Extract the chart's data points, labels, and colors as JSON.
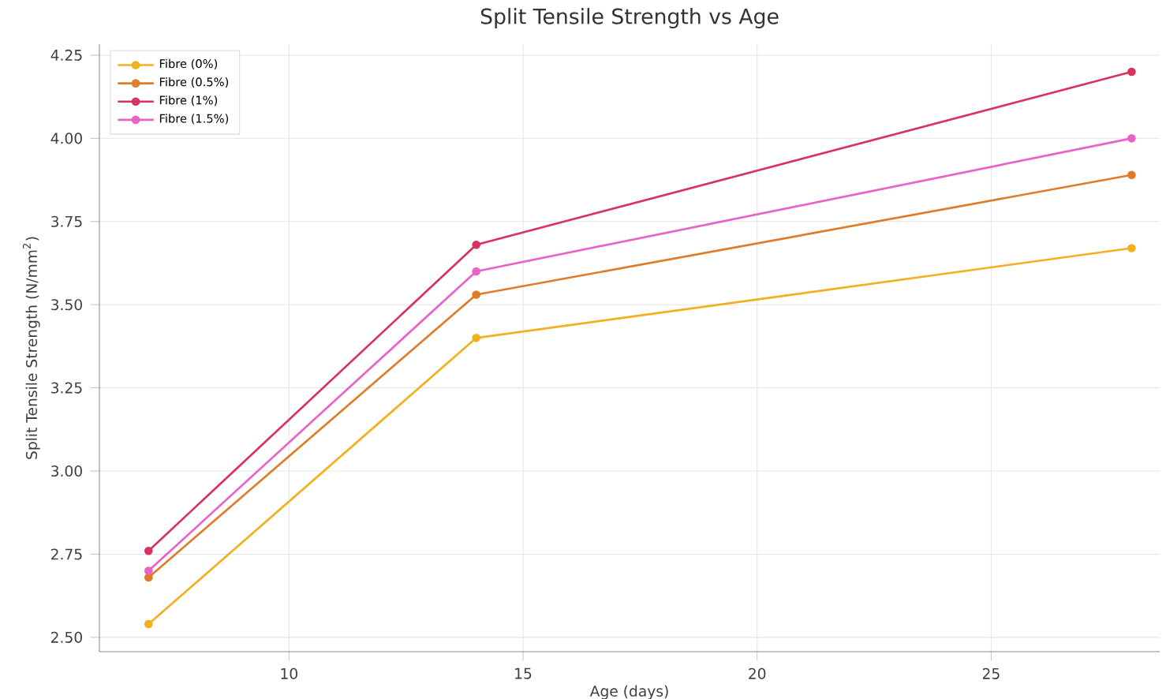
{
  "chart_data": {
    "type": "line",
    "title": "Split Tensile Strength vs Age",
    "xlabel": "Age (days)",
    "ylabel": "Split Tensile Strength (N/mm$^{2}$)",
    "x": [
      7,
      14,
      28
    ],
    "series": [
      {
        "name": "Fibre (0%)",
        "color": "#f2b01e",
        "values": [
          2.54,
          3.4,
          3.67
        ]
      },
      {
        "name": "Fibre (0.5%)",
        "color": "#e07b28",
        "values": [
          2.68,
          3.53,
          3.89
        ]
      },
      {
        "name": "Fibre (1%)",
        "color": "#d9325e",
        "values": [
          2.76,
          3.68,
          4.2
        ]
      },
      {
        "name": "Fibre (1.5%)",
        "color": "#e862c8",
        "values": [
          2.7,
          3.6,
          4.0
        ]
      }
    ],
    "xlim": [
      5.95,
      28.6
    ],
    "ylim": [
      2.457,
      4.283
    ],
    "xticks": [
      10,
      15,
      20,
      25
    ],
    "yticks": [
      {
        "value": 2.5,
        "label": "2.50"
      },
      {
        "value": 2.75,
        "label": "2.75"
      },
      {
        "value": 3.0,
        "label": "3.00"
      },
      {
        "value": 3.25,
        "label": "3.25"
      },
      {
        "value": 3.5,
        "label": "3.50"
      },
      {
        "value": 3.75,
        "label": "3.75"
      },
      {
        "value": 4.0,
        "label": "4.00"
      },
      {
        "value": 4.25,
        "label": "4.25"
      }
    ],
    "grid": true,
    "legend": "top left",
    "marker": "circle",
    "line_style": "solid"
  }
}
